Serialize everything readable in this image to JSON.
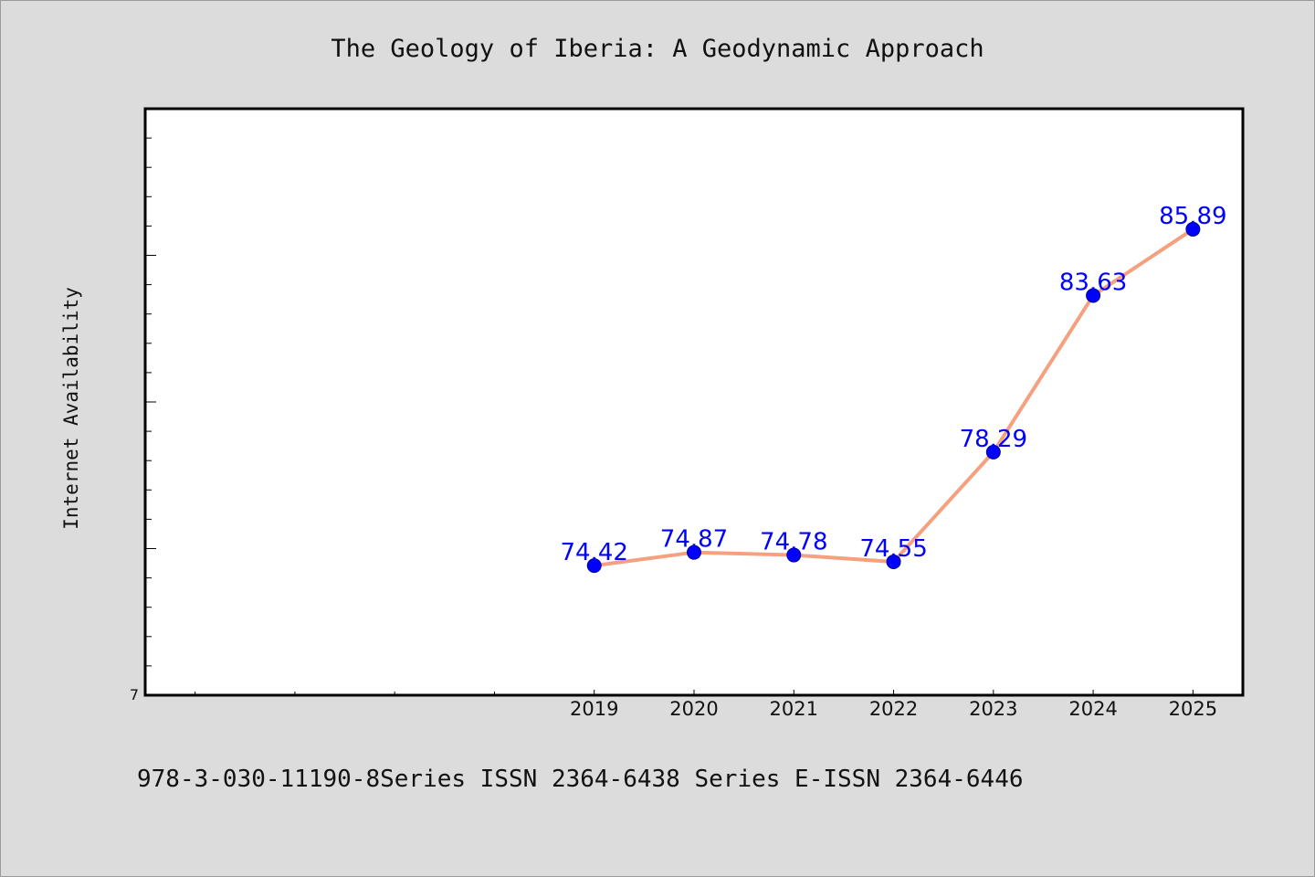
{
  "chart_data": {
    "type": "line",
    "title": "The Geology of Iberia: A Geodynamic Approach",
    "ylabel": "Internet Availability",
    "xlabel": "",
    "x_ticks": [
      "2019",
      "2020",
      "2021",
      "2022",
      "2023",
      "2024",
      "2025"
    ],
    "y_tick_labels": [
      "7"
    ],
    "series": [
      {
        "x": [
          "2019",
          "2020",
          "2021",
          "2022",
          "2023",
          "2024",
          "2025"
        ],
        "values": [
          74.42,
          74.87,
          74.78,
          74.55,
          78.29,
          83.63,
          85.89
        ],
        "labels": [
          "74.42",
          "74.87",
          "74.78",
          "74.55",
          "78.29",
          "83.63",
          "85.89"
        ]
      }
    ],
    "xlim": [
      2014.5,
      2025.5
    ],
    "ylim": [
      70,
      90
    ],
    "grid": false,
    "line_color": "#f5a07f",
    "marker_color": "#0000ff",
    "label_color": "#0000ff"
  },
  "footer": {
    "text": "978-3-030-11190-8Series ISSN 2364-6438 Series E-ISSN 2364-6446"
  }
}
